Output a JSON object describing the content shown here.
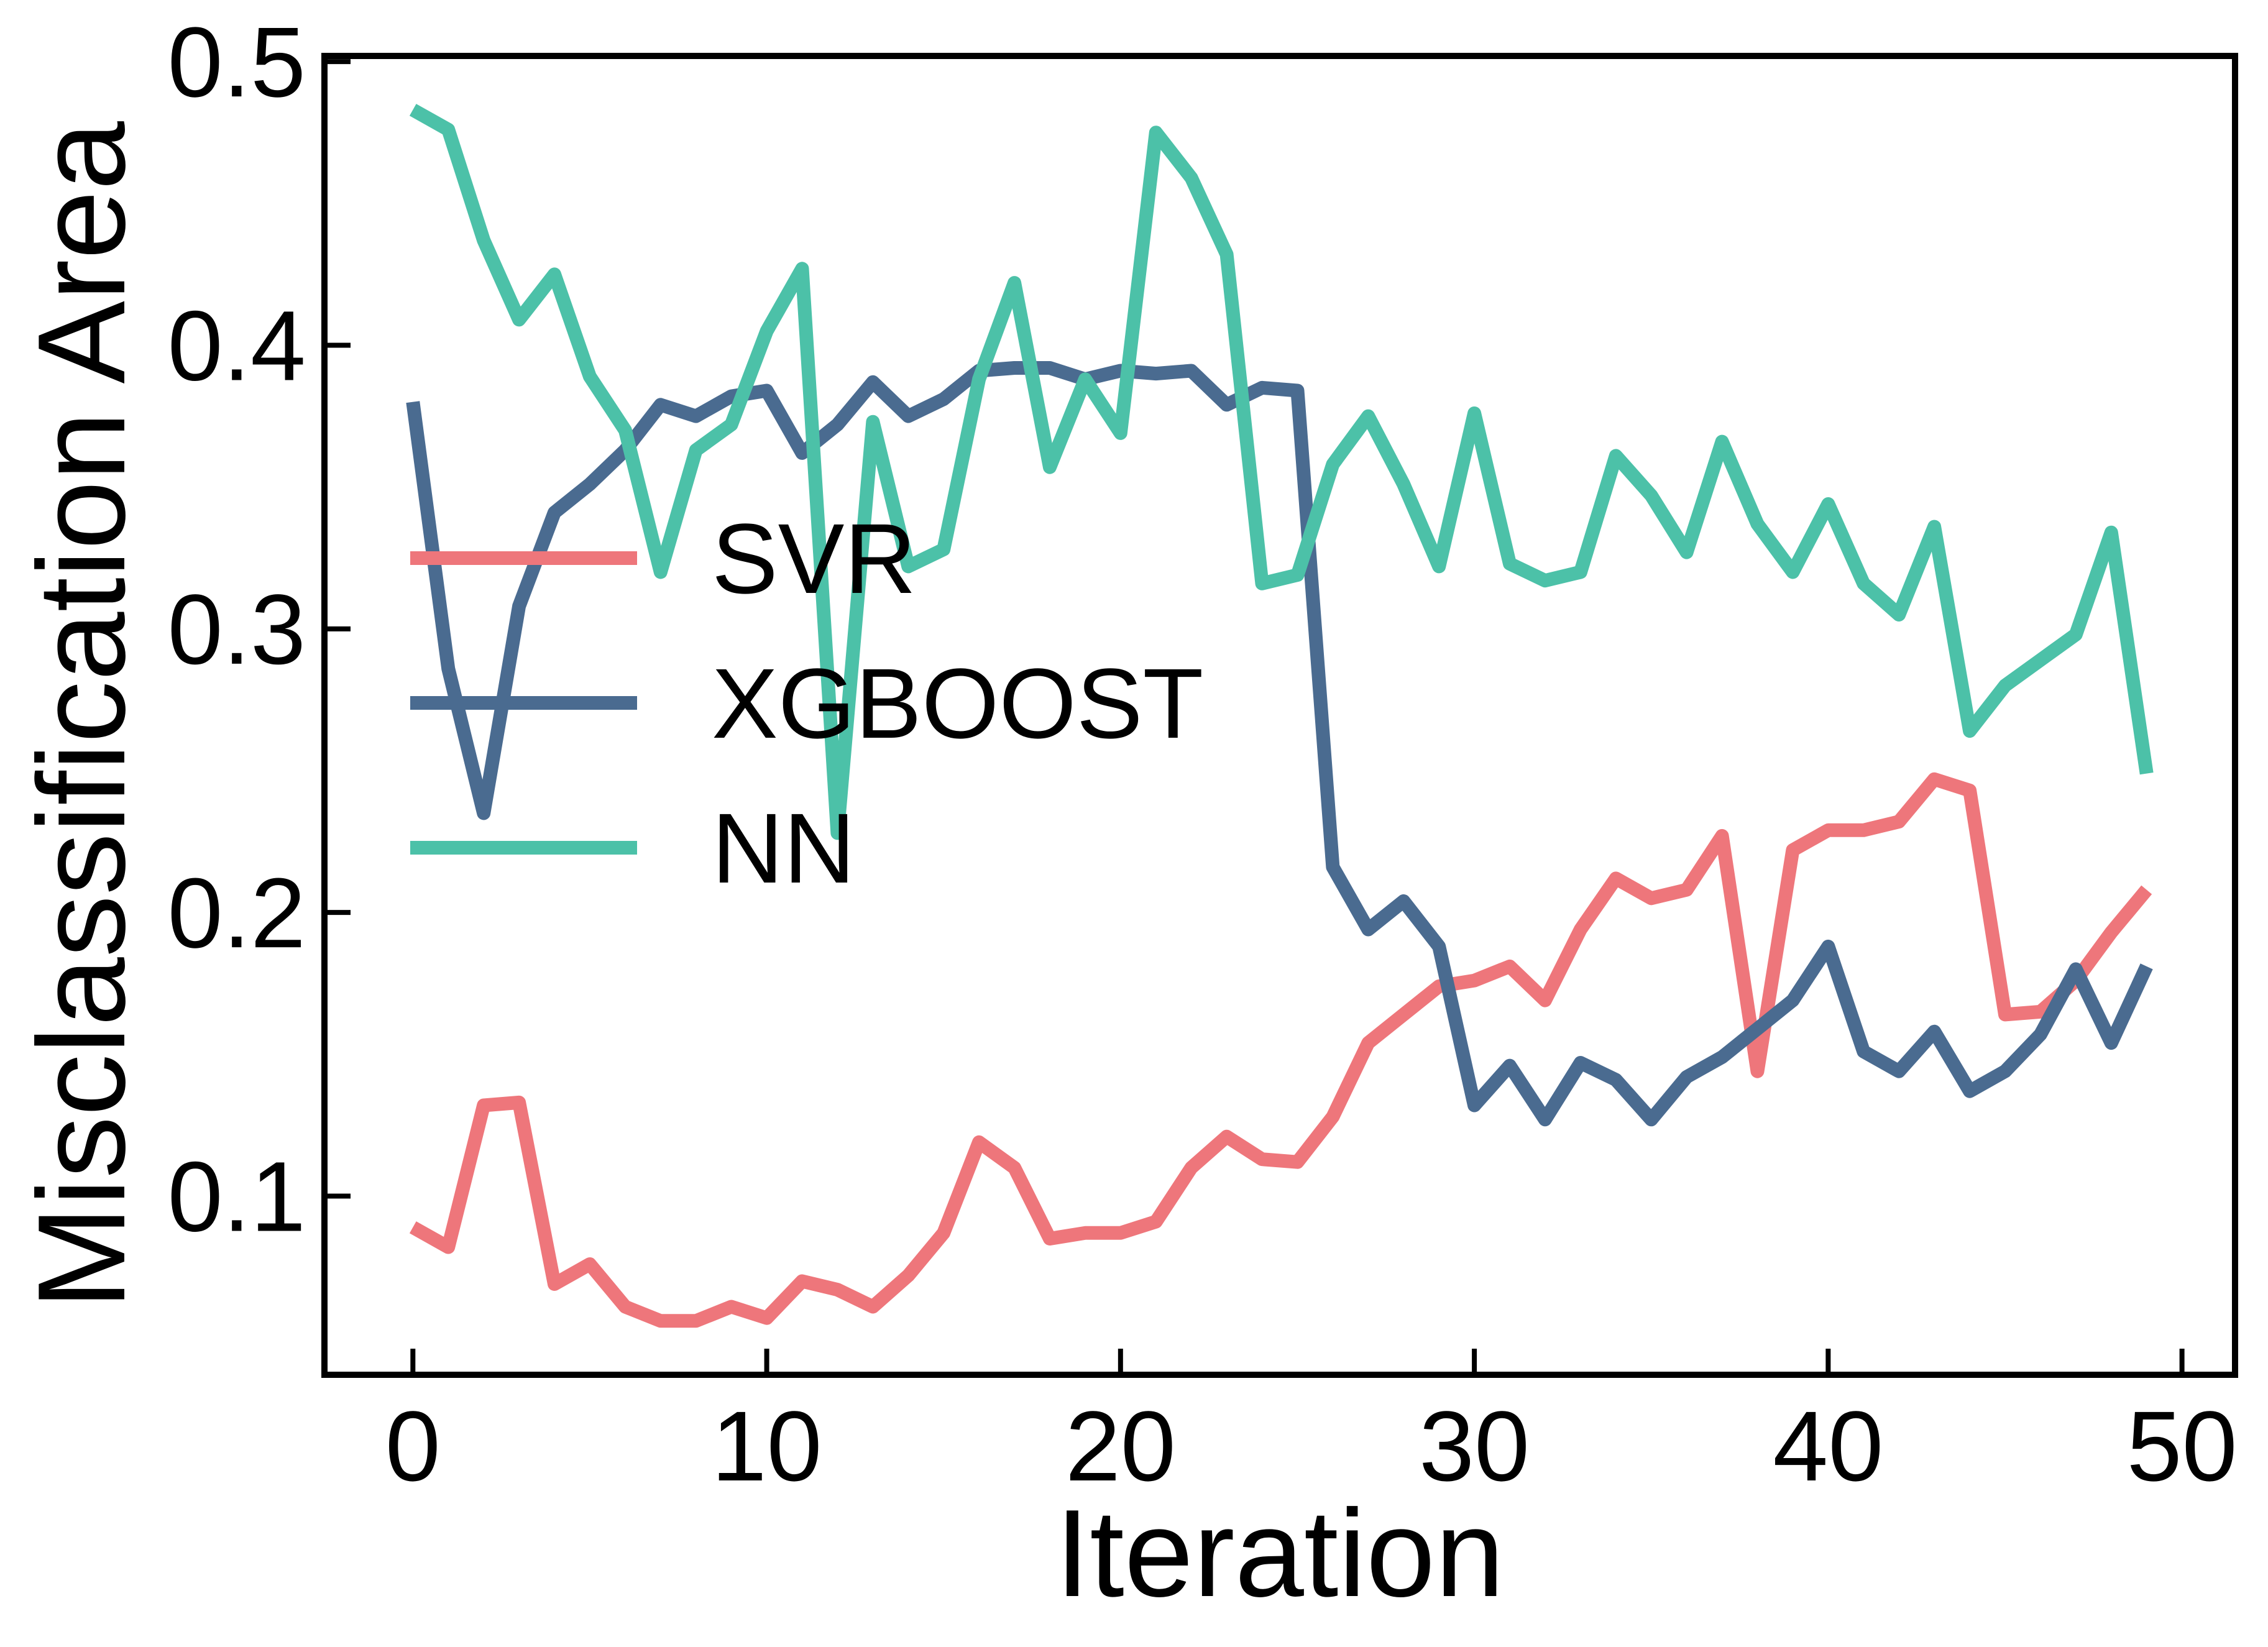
{
  "chart_data": {
    "type": "line",
    "xlabel": "Iteration",
    "ylabel": "Misclassification Area",
    "xlim": [
      -2.5,
      51.5
    ],
    "ylim": [
      0.037,
      0.502
    ],
    "xticks": [
      0,
      10,
      20,
      30,
      40,
      50
    ],
    "yticks": [
      0.1,
      0.2,
      0.3,
      0.4,
      0.5
    ],
    "xtick_labels": [
      "0",
      "10",
      "20",
      "30",
      "40",
      "50"
    ],
    "ytick_labels": [
      "0.1",
      "0.2",
      "0.3",
      "0.4",
      "0.5"
    ],
    "grid": false,
    "legend_position": "center-left",
    "x": [
      0,
      1,
      2,
      3,
      4,
      5,
      6,
      7,
      8,
      9,
      10,
      11,
      12,
      13,
      14,
      15,
      16,
      17,
      18,
      19,
      20,
      21,
      22,
      23,
      24,
      25,
      26,
      27,
      28,
      29,
      30,
      31,
      32,
      33,
      34,
      35,
      36,
      37,
      38,
      39,
      40,
      41,
      42,
      43,
      44,
      45,
      46,
      47,
      48,
      49
    ],
    "series": [
      {
        "name": "SVR",
        "color": "#EE767B",
        "values": [
          0.089,
          0.082,
          0.132,
          0.133,
          0.069,
          0.076,
          0.061,
          0.056,
          0.056,
          0.061,
          0.057,
          0.07,
          0.067,
          0.061,
          0.072,
          0.087,
          0.119,
          0.11,
          0.085,
          0.087,
          0.087,
          0.091,
          0.11,
          0.121,
          0.113,
          0.112,
          0.128,
          0.154,
          0.164,
          0.174,
          0.176,
          0.181,
          0.169,
          0.194,
          0.212,
          0.205,
          0.208,
          0.227,
          0.144,
          0.222,
          0.229,
          0.229,
          0.232,
          0.247,
          0.243,
          0.164,
          0.165,
          0.176,
          0.193,
          0.208
        ]
      },
      {
        "name": "XGBOOST",
        "color": "#4A6B90",
        "values": [
          0.38,
          0.286,
          0.235,
          0.308,
          0.341,
          0.351,
          0.363,
          0.379,
          0.375,
          0.382,
          0.384,
          0.362,
          0.372,
          0.387,
          0.375,
          0.381,
          0.391,
          0.392,
          0.392,
          0.388,
          0.391,
          0.39,
          0.391,
          0.379,
          0.385,
          0.384,
          0.216,
          0.194,
          0.204,
          0.188,
          0.132,
          0.146,
          0.127,
          0.147,
          0.141,
          0.127,
          0.142,
          0.149,
          0.159,
          0.169,
          0.188,
          0.151,
          0.144,
          0.158,
          0.137,
          0.144,
          0.157,
          0.18,
          0.154,
          0.181
        ]
      },
      {
        "name": "NN",
        "color": "#4CC1A8",
        "values": [
          0.483,
          0.476,
          0.437,
          0.409,
          0.425,
          0.389,
          0.37,
          0.32,
          0.363,
          0.372,
          0.405,
          0.427,
          0.228,
          0.373,
          0.322,
          0.328,
          0.388,
          0.422,
          0.357,
          0.388,
          0.369,
          0.475,
          0.459,
          0.432,
          0.316,
          0.319,
          0.358,
          0.375,
          0.351,
          0.322,
          0.376,
          0.323,
          0.317,
          0.32,
          0.361,
          0.347,
          0.327,
          0.366,
          0.337,
          0.32,
          0.344,
          0.316,
          0.305,
          0.336,
          0.264,
          0.28,
          0.289,
          0.298,
          0.334,
          0.249
        ]
      }
    ]
  }
}
